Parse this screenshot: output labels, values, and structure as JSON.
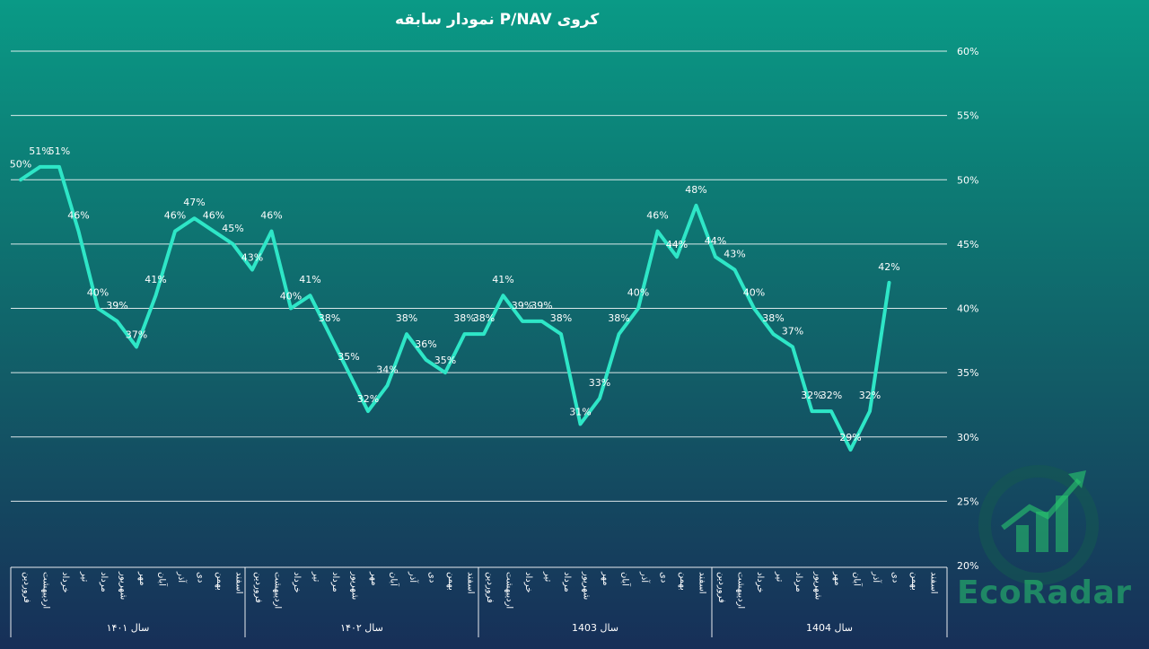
{
  "chart_data": {
    "type": "line",
    "title": "نمودار سابقه P/NAV کروی",
    "ylim": [
      20,
      60
    ],
    "yticks": [
      "20%",
      "25%",
      "30%",
      "35%",
      "40%",
      "45%",
      "50%",
      "55%",
      "60%"
    ],
    "grid": true,
    "line_color": "#2ee6c7",
    "years": [
      {
        "label": "سال ۱۴۰۱",
        "months": [
          "فروردین",
          "اردیبهشت",
          "خرداد",
          "تیر",
          "مرداد",
          "شهریور",
          "مهر",
          "آبان",
          "آذر",
          "دی",
          "بهمن",
          "اسفند"
        ]
      },
      {
        "label": "سال ۱۴۰۲",
        "months": [
          "فروردین",
          "اردیبهشت",
          "خرداد",
          "تیر",
          "مرداد",
          "شهریور",
          "مهر",
          "آبان",
          "آذر",
          "دی",
          "بهمن",
          "اسفند"
        ]
      },
      {
        "label": "سال 1403",
        "months": [
          "فروردین",
          "اردیبهشت",
          "خرداد",
          "تیر",
          "مرداد",
          "شهریور",
          "مهر",
          "آبان",
          "آذر",
          "دی",
          "بهمن",
          "اسفند"
        ]
      },
      {
        "label": "سال 1404",
        "months": [
          "فروردین",
          "اردیبهشت",
          "خرداد",
          "تیر",
          "مرداد",
          "شهریور",
          "مهر",
          "آبان",
          "آذر",
          "دی",
          "بهمن",
          "اسفند"
        ]
      }
    ],
    "values": [
      50,
      51,
      51,
      46,
      40,
      39,
      37,
      41,
      46,
      47,
      46,
      45,
      43,
      46,
      40,
      41,
      38,
      35,
      32,
      34,
      38,
      36,
      35,
      38,
      38,
      41,
      39,
      39,
      38,
      31,
      33,
      38,
      40,
      46,
      44,
      48,
      44,
      43,
      40,
      38,
      37,
      32,
      32,
      29,
      32,
      42
    ],
    "labels": [
      "50%",
      "51%",
      "51%",
      "46%",
      "40%",
      "39%",
      "37%",
      "41%",
      "46%",
      "47%",
      "46%",
      "45%",
      "43%",
      "46%",
      "40%",
      "41%",
      "38%",
      "35%",
      "32%",
      "34%",
      "38%",
      "36%",
      "35%",
      "38%",
      "38%",
      "41%",
      "39%",
      "39%",
      "38%",
      "31%",
      "33%",
      "38%",
      "40%",
      "46%",
      "44%",
      "48%",
      "44%",
      "43%",
      "40%",
      "38%",
      "37%",
      "32%",
      "32%",
      "29%",
      "32%",
      "42%"
    ]
  },
  "watermark": {
    "text": "EcoRadar",
    "icon": "rising-chart-logo-icon"
  }
}
